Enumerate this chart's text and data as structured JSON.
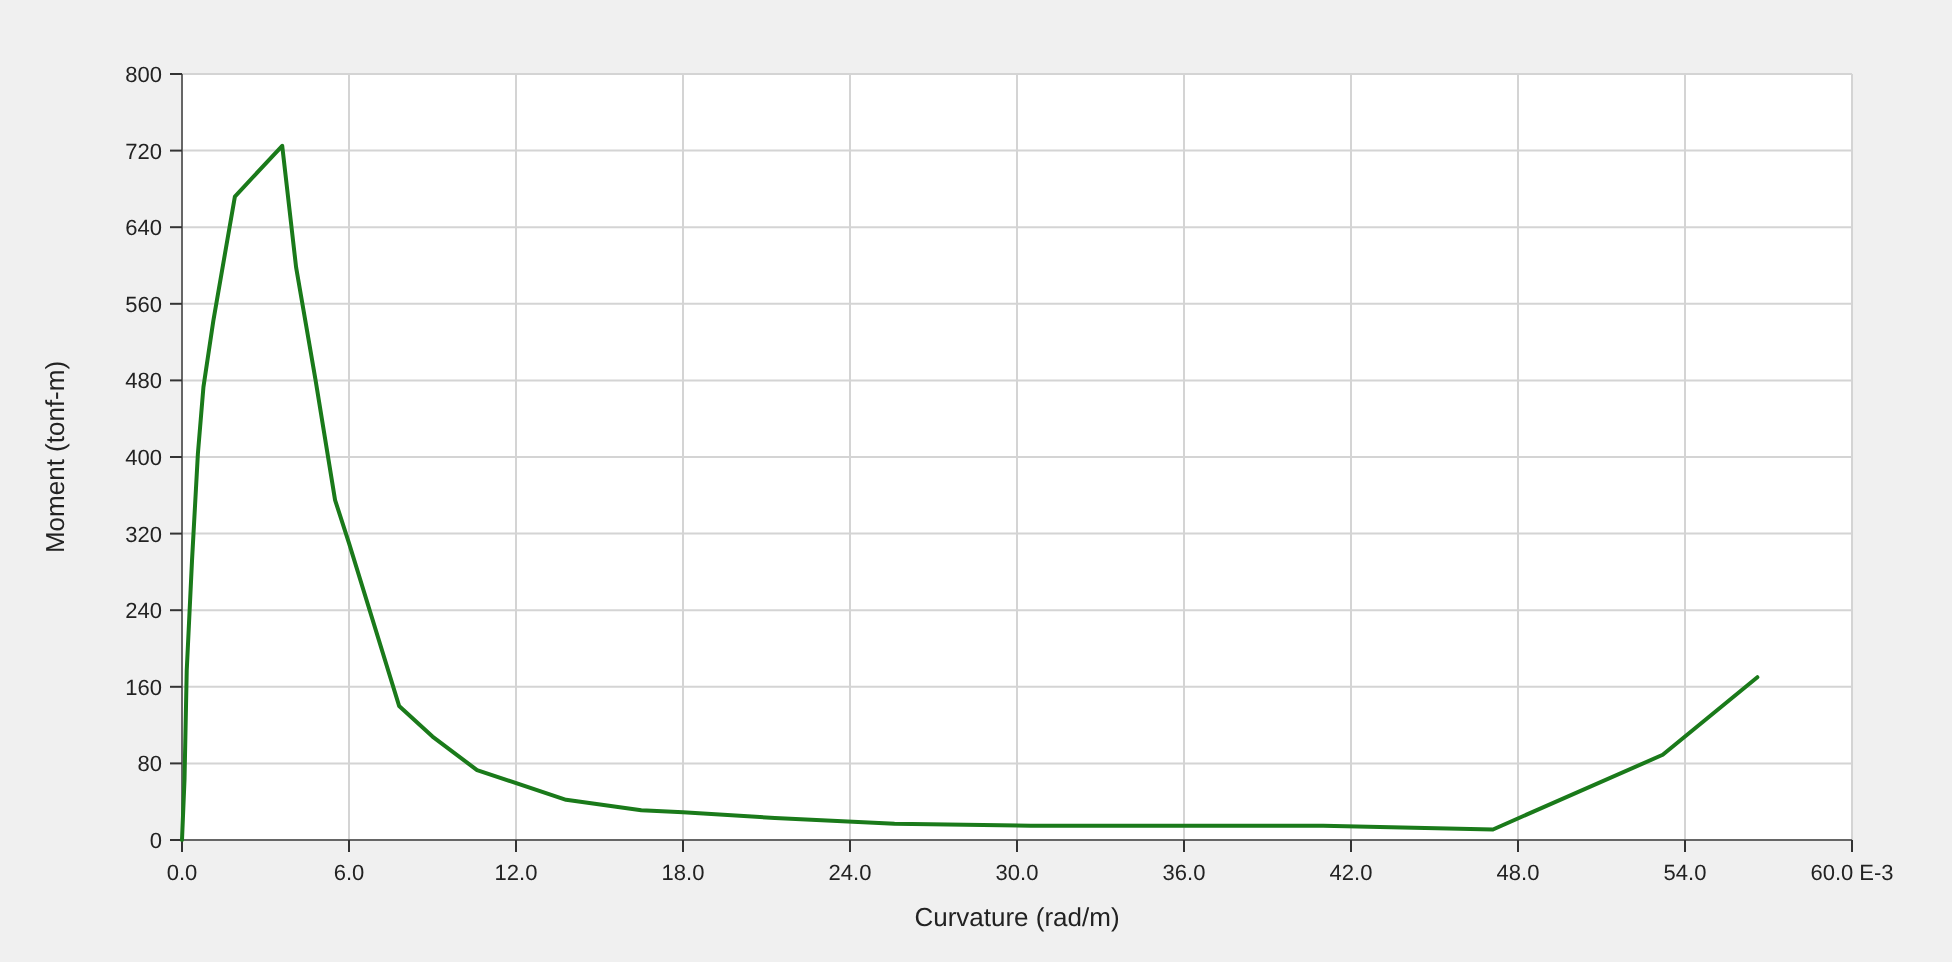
{
  "chart_data": {
    "type": "line",
    "xlabel": "Curvature (rad/m)",
    "ylabel": "Moment (tonf-m)",
    "xlim": [
      0,
      60
    ],
    "ylim": [
      0,
      800
    ],
    "xticks": [
      {
        "value": 0,
        "label": "0.0"
      },
      {
        "value": 6,
        "label": "6.0"
      },
      {
        "value": 12,
        "label": "12.0"
      },
      {
        "value": 18,
        "label": "18.0"
      },
      {
        "value": 24,
        "label": "24.0"
      },
      {
        "value": 30,
        "label": "30.0"
      },
      {
        "value": 36,
        "label": "36.0"
      },
      {
        "value": 42,
        "label": "42.0"
      },
      {
        "value": 48,
        "label": "48.0"
      },
      {
        "value": 54,
        "label": "54.0"
      },
      {
        "value": 60,
        "label": "60.0 E-3"
      }
    ],
    "yticks": [
      0,
      80,
      160,
      240,
      320,
      400,
      480,
      560,
      640,
      720,
      800
    ],
    "grid": true,
    "marker": "none",
    "line_style": "solid",
    "series": [
      {
        "color": "#1a7a1a",
        "x": [
          0,
          0.09,
          0.17,
          0.36,
          0.57,
          0.77,
          1.13,
          1.9,
          3.6,
          4.1,
          4.8,
          5.5,
          6.0,
          7.8,
          9.0,
          10.6,
          13.8,
          16.5,
          18.0,
          21.3,
          25.6,
          30.5,
          41.0,
          47.1,
          53.2,
          56.6
        ],
        "values": [
          0,
          63,
          177,
          292,
          403,
          473,
          543,
          672,
          725,
          598,
          480,
          355,
          310,
          140,
          108,
          73,
          42,
          31,
          29,
          23,
          17,
          15,
          15,
          11,
          89,
          170
        ]
      }
    ]
  }
}
